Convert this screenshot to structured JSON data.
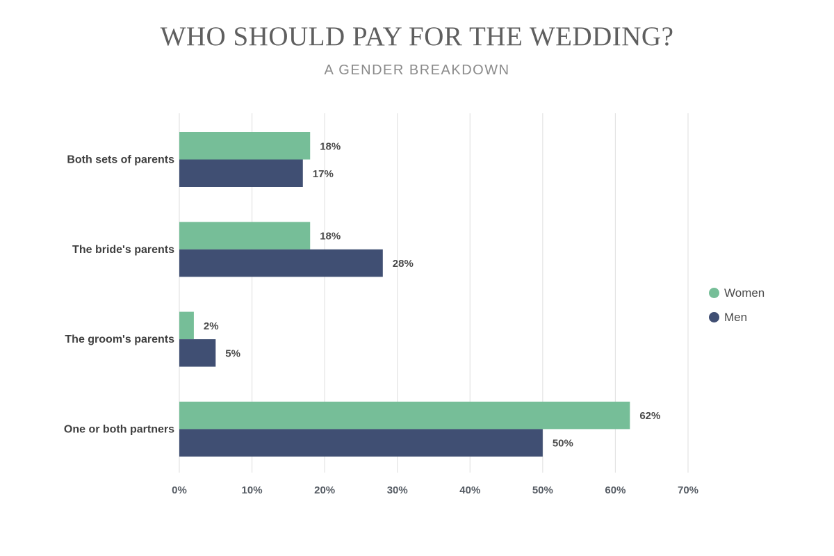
{
  "chart_data": {
    "type": "bar",
    "orientation": "horizontal",
    "title": "WHO SHOULD PAY FOR THE WEDDING?",
    "subtitle": "A GENDER BREAKDOWN",
    "categories": [
      "Both sets of parents",
      "The bride's parents",
      "The groom's parents",
      "One or both partners"
    ],
    "series": [
      {
        "name": "Women",
        "color": "#76be98",
        "values": [
          18,
          18,
          2,
          62
        ],
        "labels": [
          "18%",
          "18%",
          "2%",
          "62%"
        ]
      },
      {
        "name": "Men",
        "color": "#404f73",
        "values": [
          17,
          28,
          5,
          50
        ],
        "labels": [
          "17%",
          "28%",
          "5%",
          "50%"
        ]
      }
    ],
    "xlim": [
      0,
      70
    ],
    "xticks": [
      0,
      10,
      20,
      30,
      40,
      50,
      60,
      70
    ],
    "xtick_labels": [
      "0%",
      "10%",
      "20%",
      "30%",
      "40%",
      "50%",
      "60%",
      "70%"
    ],
    "grid": true,
    "legend_position": "right"
  }
}
